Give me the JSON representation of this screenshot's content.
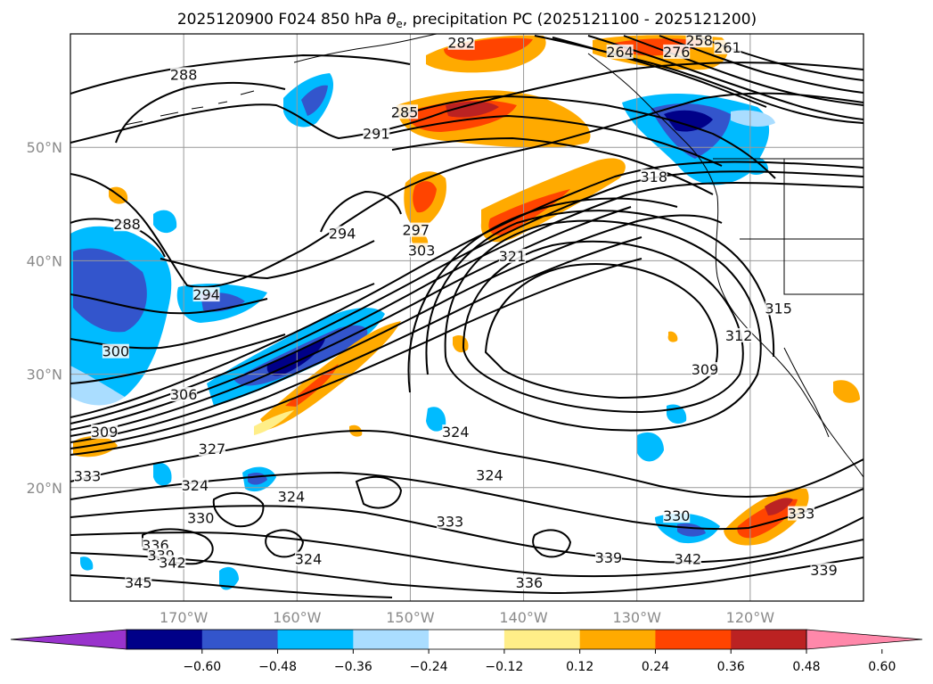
{
  "figure": {
    "title_main": "2025120900 F024 850 hPa ",
    "title_theta": "θ",
    "title_sub": "e",
    "title_rest": ", precipitation PC (2025121100 - 2025121200)"
  },
  "map": {
    "lon_range": [
      -180,
      -110
    ],
    "lat_range": [
      10,
      60
    ],
    "lat_ticks": [
      {
        "value": 50,
        "label": "50°N"
      },
      {
        "value": 40,
        "label": "40°N"
      },
      {
        "value": 30,
        "label": "30°N"
      },
      {
        "value": 20,
        "label": "20°N"
      }
    ],
    "lon_ticks": [
      {
        "value": -170,
        "label": "170°W"
      },
      {
        "value": -160,
        "label": "160°W"
      },
      {
        "value": -150,
        "label": "150°W"
      },
      {
        "value": -140,
        "label": "140°W"
      },
      {
        "value": -130,
        "label": "130°W"
      },
      {
        "value": -120,
        "label": "120°W"
      }
    ],
    "grid": true,
    "contour_labels": [
      {
        "text": "282",
        "lon": -145.5,
        "lat": 59.0
      },
      {
        "text": "258",
        "lon": -124.5,
        "lat": 59.2
      },
      {
        "text": "261",
        "lon": -122.0,
        "lat": 58.6
      },
      {
        "text": "276",
        "lon": -126.5,
        "lat": 58.2
      },
      {
        "text": "264",
        "lon": -131.5,
        "lat": 58.2
      },
      {
        "text": "288",
        "lon": -170.0,
        "lat": 56.2
      },
      {
        "text": "285",
        "lon": -150.5,
        "lat": 52.9
      },
      {
        "text": "291",
        "lon": -153.0,
        "lat": 51.0
      },
      {
        "text": "318",
        "lon": -128.5,
        "lat": 47.2
      },
      {
        "text": "297",
        "lon": -149.5,
        "lat": 42.5
      },
      {
        "text": "294",
        "lon": -156.0,
        "lat": 42.2
      },
      {
        "text": "288",
        "lon": -175.0,
        "lat": 43.0
      },
      {
        "text": "303",
        "lon": -149.0,
        "lat": 40.7
      },
      {
        "text": "321",
        "lon": -141.0,
        "lat": 40.2
      },
      {
        "text": "294",
        "lon": -168.0,
        "lat": 36.8
      },
      {
        "text": "315",
        "lon": -117.5,
        "lat": 35.6
      },
      {
        "text": "312",
        "lon": -121.0,
        "lat": 33.2
      },
      {
        "text": "300",
        "lon": -176.0,
        "lat": 31.8
      },
      {
        "text": "309",
        "lon": -124.0,
        "lat": 30.2
      },
      {
        "text": "306",
        "lon": -170.0,
        "lat": 28.0
      },
      {
        "text": "309",
        "lon": -177.0,
        "lat": 24.7
      },
      {
        "text": "324",
        "lon": -146.0,
        "lat": 24.7
      },
      {
        "text": "327",
        "lon": -167.5,
        "lat": 23.2
      },
      {
        "text": "324",
        "lon": -143.0,
        "lat": 20.9
      },
      {
        "text": "333",
        "lon": -178.5,
        "lat": 20.8
      },
      {
        "text": "324",
        "lon": -169.0,
        "lat": 20.0
      },
      {
        "text": "324",
        "lon": -160.5,
        "lat": 19.0
      },
      {
        "text": "330",
        "lon": -168.5,
        "lat": 17.1
      },
      {
        "text": "330",
        "lon": -126.5,
        "lat": 17.3
      },
      {
        "text": "333",
        "lon": -115.5,
        "lat": 17.5
      },
      {
        "text": "333",
        "lon": -146.5,
        "lat": 16.8
      },
      {
        "text": "336",
        "lon": -172.5,
        "lat": 14.7
      },
      {
        "text": "339",
        "lon": -172.0,
        "lat": 13.8
      },
      {
        "text": "324",
        "lon": -159.0,
        "lat": 13.5
      },
      {
        "text": "342",
        "lon": -171.0,
        "lat": 13.2
      },
      {
        "text": "339",
        "lon": -132.5,
        "lat": 13.6
      },
      {
        "text": "342",
        "lon": -125.5,
        "lat": 13.5
      },
      {
        "text": "345",
        "lon": -174.0,
        "lat": 11.4
      },
      {
        "text": "336",
        "lon": -139.5,
        "lat": 11.4
      },
      {
        "text": "339",
        "lon": -113.5,
        "lat": 12.5
      }
    ]
  },
  "colorbar": {
    "colors": [
      "#9933cc",
      "#000088",
      "#3355cc",
      "#00bbff",
      "#aaddff",
      "#ffffff",
      "#ffee88",
      "#ffaa00",
      "#ff4400",
      "#bb2222",
      "#ff88aa"
    ],
    "ticks": [
      "−0.60",
      "−0.48",
      "−0.36",
      "−0.24",
      "−0.12",
      "0.12",
      "0.24",
      "0.36",
      "0.48",
      "0.60"
    ]
  }
}
